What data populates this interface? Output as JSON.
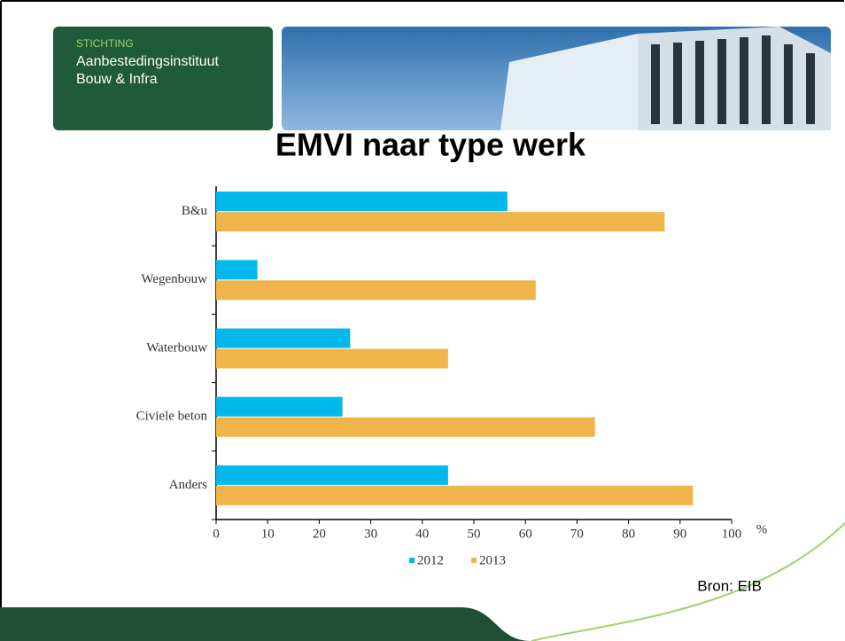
{
  "header": {
    "organization": [
      "STICHTING",
      "Aanbestedingsinstituut",
      "Bouw & Infra"
    ]
  },
  "chart_data": {
    "type": "barh",
    "title": "EMVI naar type werk",
    "categories": [
      "B&u",
      "Wegenbouw",
      "Waterbouw",
      "Civiele beton",
      "Anders"
    ],
    "series": [
      {
        "name": "2012",
        "color": "#00b8ec",
        "values": [
          56.5,
          8,
          26,
          24.5,
          45
        ]
      },
      {
        "name": "2013",
        "color": "#f0b54a",
        "values": [
          87,
          62,
          45,
          73.5,
          92.5
        ]
      }
    ],
    "xlim": [
      0,
      100
    ],
    "xticks": [
      0,
      10,
      20,
      30,
      40,
      50,
      60,
      70,
      80,
      90,
      100
    ],
    "x_unit": "%",
    "legend": "bottom",
    "source": "Bron: EIB"
  }
}
